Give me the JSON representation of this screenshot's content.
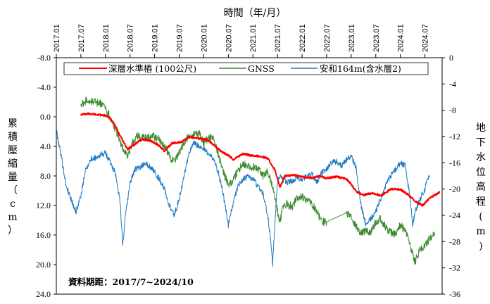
{
  "chart_data": {
    "type": "line",
    "title": "時間（年/月）",
    "ylabel_left": "累積壓縮量（cm）",
    "ylabel_right": "地下水位高程(m)",
    "ylim_left": [
      -8.0,
      24.0
    ],
    "ylim_right": [
      0,
      -36
    ],
    "yticks_left": [
      "-8.0",
      "-4.0",
      "0.0",
      "4.0",
      "8.0",
      "12.0",
      "16.0",
      "20.0",
      "24.0"
    ],
    "yticks_right": [
      "0",
      "-4",
      "-8",
      "-12",
      "-16",
      "-20",
      "-24",
      "-28",
      "-32",
      "-36"
    ],
    "xlim": [
      2017.0,
      2024.85
    ],
    "xticks": [
      "2017.01",
      "2017.07",
      "2018.01",
      "2018.07",
      "2019.01",
      "2019.07",
      "2020.01",
      "2020.07",
      "2021.01",
      "2021.07",
      "2022.01",
      "2022.07",
      "2023.01",
      "2023.07",
      "2024.01",
      "2024.07"
    ],
    "note": "資料期距：2017/7~2024/10",
    "series": [
      {
        "name": "深層水準樁 (100公尺)",
        "axis": "left",
        "color": "#ff0000",
        "x": [
          2017.5,
          2017.65,
          2017.8,
          2018.0,
          2018.1,
          2018.2,
          2018.3,
          2018.45,
          2018.6,
          2018.75,
          2018.9,
          2019.05,
          2019.2,
          2019.35,
          2019.55,
          2019.7,
          2019.85,
          2020.0,
          2020.1,
          2020.2,
          2020.35,
          2020.5,
          2020.6,
          2020.8,
          2020.95,
          2021.1,
          2021.3,
          2021.45,
          2021.55,
          2021.65,
          2021.85,
          2022.0,
          2022.2,
          2022.35,
          2022.5,
          2022.7,
          2022.9,
          2023.0,
          2023.1,
          2023.25,
          2023.45,
          2023.6,
          2023.8,
          2024.0,
          2024.15,
          2024.3,
          2024.45,
          2024.6,
          2024.8
        ],
        "values": [
          -0.3,
          -0.4,
          -0.3,
          -0.2,
          0.3,
          1.2,
          2.6,
          4.4,
          3.7,
          3.0,
          3.2,
          3.7,
          4.6,
          3.6,
          3.4,
          2.7,
          2.9,
          3.0,
          3.2,
          3.8,
          4.7,
          5.2,
          5.8,
          5.0,
          5.2,
          5.3,
          5.6,
          7.2,
          9.6,
          8.0,
          7.9,
          8.1,
          8.3,
          8.0,
          8.3,
          8.1,
          8.4,
          9.1,
          10.1,
          10.6,
          10.3,
          10.7,
          9.8,
          9.8,
          10.5,
          11.4,
          12.0,
          11.0,
          10.2
        ]
      },
      {
        "name": "GNSS",
        "axis": "left",
        "color": "#3a8a2e",
        "x": [
          2017.5,
          2017.6,
          2017.75,
          2017.9,
          2018.0,
          2018.05,
          2018.15,
          2018.25,
          2018.35,
          2018.45,
          2018.55,
          2018.65,
          2018.8,
          2018.95,
          2019.05,
          2019.15,
          2019.25,
          2019.35,
          2019.45,
          2019.55,
          2019.65,
          2019.75,
          2019.9,
          2020.0,
          2020.1,
          2020.2,
          2020.3,
          2020.4,
          2020.5,
          2020.6,
          2020.7,
          2020.8,
          2020.9,
          2021.0,
          2021.1,
          2021.2,
          2021.3,
          2021.4,
          2021.5,
          2021.55,
          2021.6,
          2021.7,
          2021.8,
          2021.9,
          2022.0,
          2022.1,
          2022.2,
          2022.3,
          2022.4,
          2022.5,
          2022.9,
          2023.0,
          2023.1,
          2023.2,
          2023.3,
          2023.4,
          2023.5,
          2023.6,
          2023.7,
          2023.8,
          2023.9,
          2024.0,
          2024.1,
          2024.2,
          2024.3,
          2024.4,
          2024.5,
          2024.6,
          2024.7
        ],
        "values": [
          -1.5,
          -2.2,
          -2.0,
          -1.8,
          -1.2,
          -0.5,
          1.0,
          2.5,
          4.2,
          5.4,
          3.5,
          2.6,
          2.8,
          2.6,
          2.8,
          3.5,
          4.6,
          5.8,
          5.6,
          4.2,
          3.0,
          2.4,
          2.2,
          3.6,
          2.8,
          3.0,
          5.2,
          7.6,
          9.2,
          8.6,
          7.2,
          6.5,
          6.5,
          6.8,
          7.0,
          8.0,
          7.4,
          9.5,
          12.8,
          14.3,
          12.6,
          11.8,
          12.2,
          11.0,
          10.8,
          11.4,
          11.8,
          12.8,
          14.2,
          14.2,
          13.0,
          13.4,
          14.8,
          15.9,
          15.3,
          15.6,
          14.2,
          13.8,
          15.0,
          15.6,
          15.9,
          14.6,
          15.4,
          17.5,
          19.6,
          18.0,
          17.5,
          16.4,
          15.8
        ]
      },
      {
        "name": "安和164m(含水層2)",
        "axis": "right",
        "color": "#1f7ac4",
        "x": [
          2017.0,
          2017.05,
          2017.1,
          2017.2,
          2017.3,
          2017.4,
          2017.5,
          2017.6,
          2017.7,
          2017.8,
          2017.9,
          2018.0,
          2018.1,
          2018.2,
          2018.3,
          2018.35,
          2018.4,
          2018.5,
          2018.6,
          2018.7,
          2018.8,
          2018.9,
          2019.0,
          2019.1,
          2019.2,
          2019.3,
          2019.4,
          2019.5,
          2019.6,
          2019.7,
          2019.8,
          2019.9,
          2020.0,
          2020.1,
          2020.2,
          2020.3,
          2020.4,
          2020.5,
          2020.6,
          2020.7,
          2020.8,
          2020.9,
          2021.0,
          2021.1,
          2021.2,
          2021.3,
          2021.35,
          2021.4,
          2021.45,
          2021.5,
          2021.55,
          2021.6,
          2021.7,
          2021.8,
          2021.9,
          2022.0,
          2022.1,
          2022.2,
          2022.3,
          2022.4,
          2022.5,
          2022.6,
          2022.7,
          2022.8,
          2022.9,
          2023.0,
          2023.1,
          2023.2,
          2023.3,
          2023.4,
          2023.5,
          2023.6,
          2023.7,
          2023.8,
          2023.9,
          2024.0,
          2024.1,
          2024.2,
          2024.25,
          2024.3,
          2024.4,
          2024.5,
          2024.55,
          2024.6
        ],
        "values": [
          -11.0,
          -13.0,
          -15.0,
          -19.5,
          -21.5,
          -23.5,
          -21.0,
          -17.0,
          -15.5,
          -15.2,
          -14.8,
          -14.5,
          -16.0,
          -17.5,
          -22.0,
          -28.5,
          -24.5,
          -19.0,
          -17.0,
          -16.8,
          -16.0,
          -16.5,
          -17.5,
          -18.5,
          -20.0,
          -22.5,
          -24.0,
          -21.5,
          -18.0,
          -14.5,
          -13.0,
          -13.5,
          -14.0,
          -14.5,
          -15.5,
          -17.5,
          -21.0,
          -25.5,
          -22.0,
          -19.5,
          -18.5,
          -18.0,
          -18.5,
          -19.5,
          -20.5,
          -24.0,
          -27.0,
          -31.5,
          -25.0,
          -19.0,
          -18.0,
          -18.5,
          -19.0,
          -18.8,
          -18.2,
          -18.5,
          -18.0,
          -17.8,
          -19.0,
          -17.5,
          -17.0,
          -16.0,
          -15.8,
          -16.5,
          -15.5,
          -15.0,
          -16.8,
          -22.5,
          -25.5,
          -24.5,
          -23.5,
          -21.5,
          -19.5,
          -18.0,
          -17.0,
          -16.0,
          -16.5,
          -21.5,
          -25.5,
          -23.5,
          -21.5,
          -20.0,
          -18.5,
          -18.0
        ]
      }
    ]
  }
}
